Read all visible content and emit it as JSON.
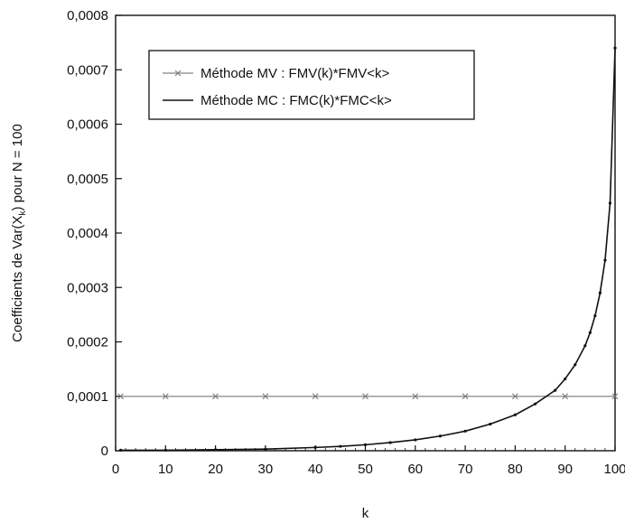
{
  "chart_data": {
    "type": "line",
    "xlabel": "k",
    "ylabel_parts": {
      "pre": "Coefficients de Var(X",
      "sub": "k",
      "post": ") pour N = 100"
    },
    "xlim": [
      0,
      100
    ],
    "ylim": [
      0,
      0.0008
    ],
    "x_ticks": [
      0,
      10,
      20,
      30,
      40,
      50,
      60,
      70,
      80,
      90,
      100
    ],
    "y_ticks": [
      0,
      0.0001,
      0.0002,
      0.0003,
      0.0004,
      0.0005,
      0.0006,
      0.0007,
      0.0008
    ],
    "y_tick_labels": [
      "0",
      "0,0001",
      "0,0002",
      "0,0003",
      "0,0004",
      "0,0005",
      "0,0006",
      "0,0007",
      "0,0008"
    ],
    "grid": false,
    "legend_position": "top-left",
    "series": [
      {
        "name": "Méthode MV : FMV(k)*FMV<k>",
        "color": "#9a9a9a",
        "marker": "cross",
        "x": [
          1,
          10,
          20,
          30,
          40,
          50,
          60,
          70,
          80,
          90,
          100
        ],
        "y": [
          0.0001,
          0.0001,
          0.0001,
          0.0001,
          0.0001,
          0.0001,
          0.0001,
          0.0001,
          0.0001,
          0.0001,
          0.0001
        ]
      },
      {
        "name": "Méthode MC : FMC(k)*FMC<k>",
        "color": "#111111",
        "marker": "dot",
        "x": [
          1,
          10,
          20,
          30,
          40,
          45,
          50,
          55,
          60,
          65,
          70,
          75,
          80,
          84,
          88,
          90,
          92,
          94,
          95,
          96,
          97,
          98,
          99,
          100
        ],
        "y": [
          1e-06,
          1e-06,
          2e-06,
          3e-06,
          6e-06,
          8e-06,
          1.1e-05,
          1.5e-05,
          2e-05,
          2.7e-05,
          3.6e-05,
          4.9e-05,
          6.6e-05,
          8.6e-05,
          0.000111,
          0.000132,
          0.000158,
          0.000193,
          0.000217,
          0.000248,
          0.00029,
          0.00035,
          0.000455,
          0.00074
        ]
      }
    ]
  }
}
